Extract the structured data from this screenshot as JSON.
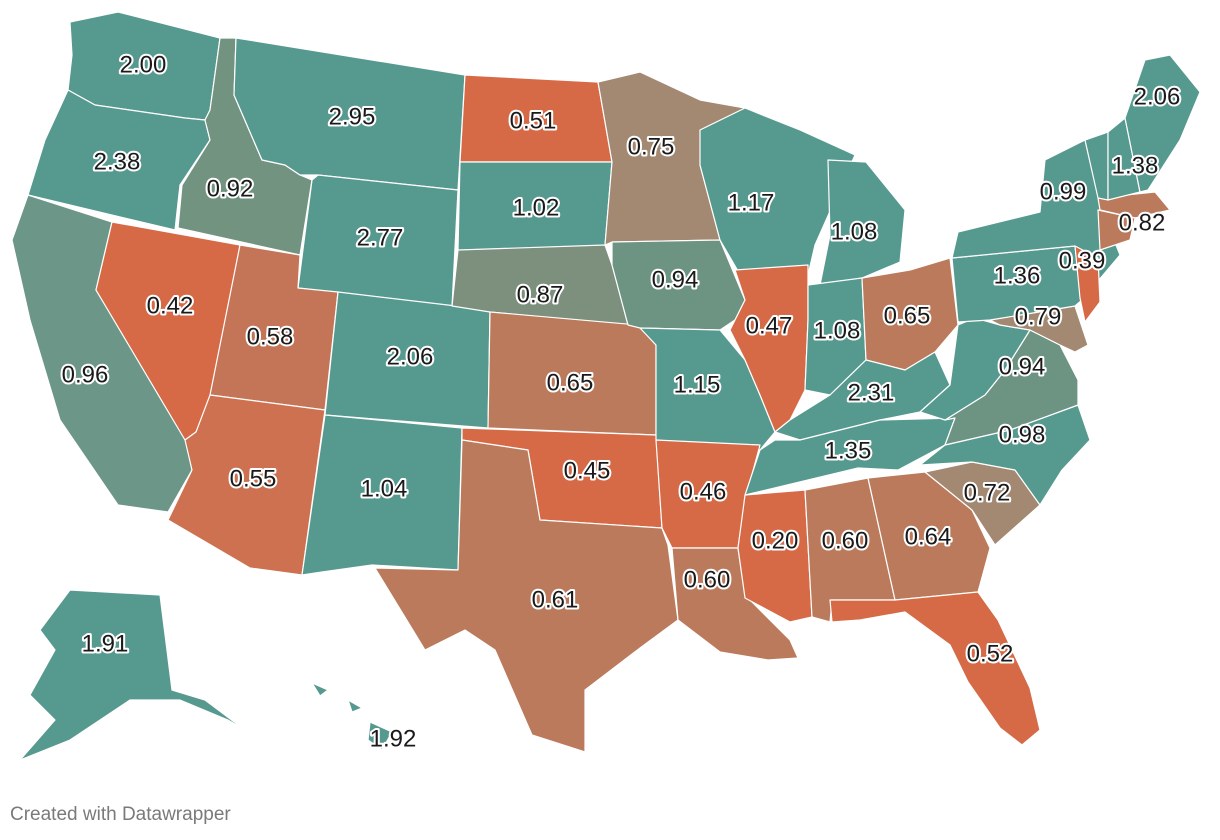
{
  "footer": "Created with Datawrapper",
  "legend": {
    "low_color": "#d66a47",
    "mid_color": "#a38872",
    "high_color": "#56998f"
  },
  "states": {
    "WA": {
      "value": "2.00",
      "color": "#56998f"
    },
    "OR": {
      "value": "2.38",
      "color": "#56998f"
    },
    "CA": {
      "value": "0.96",
      "color": "#6c9687"
    },
    "ID": {
      "value": "0.92",
      "color": "#729380"
    },
    "NV": {
      "value": "0.42",
      "color": "#d66a47"
    },
    "MT": {
      "value": "2.95",
      "color": "#56998f"
    },
    "WY": {
      "value": "2.77",
      "color": "#56998f"
    },
    "UT": {
      "value": "0.58",
      "color": "#c57557"
    },
    "AZ": {
      "value": "0.55",
      "color": "#cd7150"
    },
    "CO": {
      "value": "2.06",
      "color": "#56998f"
    },
    "NM": {
      "value": "1.04",
      "color": "#56998f"
    },
    "ND": {
      "value": "0.51",
      "color": "#d66a47"
    },
    "SD": {
      "value": "1.02",
      "color": "#56998f"
    },
    "NE": {
      "value": "0.87",
      "color": "#7c907d"
    },
    "KS": {
      "value": "0.65",
      "color": "#bb7a5b"
    },
    "OK": {
      "value": "0.45",
      "color": "#d66a47"
    },
    "TX": {
      "value": "0.61",
      "color": "#bb7a5b"
    },
    "MN": {
      "value": "0.75",
      "color": "#a38872"
    },
    "IA": {
      "value": "0.94",
      "color": "#6d9383"
    },
    "MO": {
      "value": "1.15",
      "color": "#56998f"
    },
    "AR": {
      "value": "0.46",
      "color": "#d66a47"
    },
    "LA": {
      "value": "0.60",
      "color": "#bb7a5b"
    },
    "WI": {
      "value": "1.17",
      "color": "#56998f"
    },
    "IL": {
      "value": "0.47",
      "color": "#d66a47"
    },
    "MI": {
      "value": "1.08",
      "color": "#56998f"
    },
    "IN": {
      "value": "1.08",
      "color": "#56998f"
    },
    "OH": {
      "value": "0.65",
      "color": "#bb7a5b"
    },
    "KY": {
      "value": "2.31",
      "color": "#56998f"
    },
    "TN": {
      "value": "1.35",
      "color": "#56998f"
    },
    "MS": {
      "value": "0.20",
      "color": "#d66a47"
    },
    "AL": {
      "value": "0.60",
      "color": "#bb7a5b"
    },
    "GA": {
      "value": "0.64",
      "color": "#bb7a5b"
    },
    "FL": {
      "value": "0.52",
      "color": "#d66a47"
    },
    "SC": {
      "value": "0.72",
      "color": "#a38872"
    },
    "NC": {
      "value": "0.98",
      "color": "#56998f"
    },
    "VA": {
      "value": "0.94",
      "color": "#6d9383"
    },
    "WV": {
      "value": "",
      "color": "#56998f"
    },
    "MD": {
      "value": "0.79",
      "color": "#a38872"
    },
    "PA": {
      "value": "1.36",
      "color": "#56998f"
    },
    "NY": {
      "value": "0.99",
      "color": "#56998f"
    },
    "NJ": {
      "value": "0.39",
      "color": "#d66a47"
    },
    "MA": {
      "value": "0.82",
      "color": "#bb7a5b"
    },
    "VT": {
      "value": "1.38",
      "color": "#56998f"
    },
    "NH": {
      "value": "",
      "color": "#56998f"
    },
    "ME": {
      "value": "2.06",
      "color": "#56998f"
    },
    "AK": {
      "value": "1.91",
      "color": "#56998f"
    },
    "HI": {
      "value": "1.92",
      "color": "#56998f"
    }
  }
}
